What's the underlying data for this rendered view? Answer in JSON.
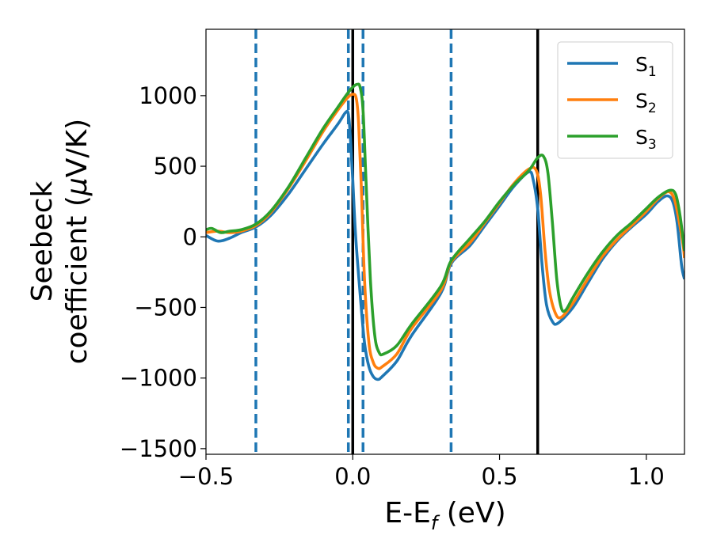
{
  "chart_data": {
    "type": "line",
    "xlabel": "E-E",
    "xlabel_sub": "f",
    "xlabel_unit": " (eV)",
    "ylabel_line1": "Seebeck",
    "ylabel_line2": "coefficient  (",
    "ylabel_mu": "μ",
    "ylabel_unit": "V/K)",
    "xlim": [
      -0.5,
      1.13
    ],
    "ylim": [
      -1540,
      1470
    ],
    "xticks": [
      {
        "value": -0.5,
        "label": "−0.5"
      },
      {
        "value": 0.0,
        "label": "0.0"
      },
      {
        "value": 0.5,
        "label": "0.5"
      },
      {
        "value": 1.0,
        "label": "1.0"
      }
    ],
    "yticks": [
      {
        "value": 1000,
        "label": "1000"
      },
      {
        "value": 500,
        "label": "500"
      },
      {
        "value": 0,
        "label": "0"
      },
      {
        "value": -500,
        "label": "−500"
      },
      {
        "value": -1000,
        "label": "−1000"
      },
      {
        "value": -1500,
        "label": "−1500"
      }
    ],
    "legend_position": "top-right",
    "grid": false,
    "vlines_solid": [
      0.0,
      0.63
    ],
    "vlines_dashed": [
      -0.33,
      -0.015,
      0.035,
      0.335
    ],
    "vline_dashed_color": "#1f77b4",
    "vline_solid_color": "#000000",
    "series": [
      {
        "name": "S",
        "sub": "1",
        "color": "#1f77b4",
        "points": [
          [
            -0.5,
            10
          ],
          [
            -0.46,
            -30
          ],
          [
            -0.42,
            -10
          ],
          [
            -0.38,
            30
          ],
          [
            -0.33,
            70
          ],
          [
            -0.28,
            150
          ],
          [
            -0.22,
            300
          ],
          [
            -0.16,
            480
          ],
          [
            -0.1,
            660
          ],
          [
            -0.05,
            800
          ],
          [
            -0.025,
            880
          ],
          [
            -0.015,
            870
          ],
          [
            -0.008,
            700
          ],
          [
            0.0,
            400
          ],
          [
            0.01,
            0
          ],
          [
            0.025,
            -400
          ],
          [
            0.04,
            -750
          ],
          [
            0.055,
            -920
          ],
          [
            0.07,
            -990
          ],
          [
            0.085,
            -1010
          ],
          [
            0.1,
            -990
          ],
          [
            0.15,
            -880
          ],
          [
            0.2,
            -700
          ],
          [
            0.3,
            -400
          ],
          [
            0.335,
            -190
          ],
          [
            0.4,
            -60
          ],
          [
            0.45,
            80
          ],
          [
            0.5,
            220
          ],
          [
            0.55,
            360
          ],
          [
            0.6,
            460
          ],
          [
            0.615,
            400
          ],
          [
            0.63,
            200
          ],
          [
            0.645,
            -200
          ],
          [
            0.66,
            -480
          ],
          [
            0.68,
            -600
          ],
          [
            0.7,
            -610
          ],
          [
            0.75,
            -500
          ],
          [
            0.8,
            -330
          ],
          [
            0.85,
            -160
          ],
          [
            0.9,
            -30
          ],
          [
            0.95,
            70
          ],
          [
            1.0,
            160
          ],
          [
            1.04,
            250
          ],
          [
            1.07,
            290
          ],
          [
            1.09,
            250
          ],
          [
            1.105,
            100
          ],
          [
            1.12,
            -200
          ],
          [
            1.13,
            -300
          ]
        ]
      },
      {
        "name": "S",
        "sub": "2",
        "color": "#ff7f0e",
        "points": [
          [
            -0.5,
            30
          ],
          [
            -0.46,
            40
          ],
          [
            -0.42,
            30
          ],
          [
            -0.38,
            40
          ],
          [
            -0.33,
            80
          ],
          [
            -0.28,
            170
          ],
          [
            -0.22,
            340
          ],
          [
            -0.16,
            540
          ],
          [
            -0.1,
            750
          ],
          [
            -0.05,
            900
          ],
          [
            -0.02,
            980
          ],
          [
            0.0,
            1010
          ],
          [
            0.012,
            980
          ],
          [
            0.02,
            800
          ],
          [
            0.03,
            300
          ],
          [
            0.04,
            -300
          ],
          [
            0.055,
            -750
          ],
          [
            0.07,
            -890
          ],
          [
            0.085,
            -930
          ],
          [
            0.1,
            -920
          ],
          [
            0.15,
            -830
          ],
          [
            0.2,
            -650
          ],
          [
            0.3,
            -380
          ],
          [
            0.335,
            -180
          ],
          [
            0.4,
            -40
          ],
          [
            0.45,
            100
          ],
          [
            0.5,
            240
          ],
          [
            0.55,
            380
          ],
          [
            0.6,
            480
          ],
          [
            0.625,
            470
          ],
          [
            0.64,
            300
          ],
          [
            0.655,
            -100
          ],
          [
            0.67,
            -380
          ],
          [
            0.69,
            -540
          ],
          [
            0.71,
            -570
          ],
          [
            0.75,
            -470
          ],
          [
            0.8,
            -300
          ],
          [
            0.85,
            -140
          ],
          [
            0.9,
            -20
          ],
          [
            0.95,
            80
          ],
          [
            1.0,
            180
          ],
          [
            1.04,
            270
          ],
          [
            1.075,
            320
          ],
          [
            1.095,
            270
          ],
          [
            1.11,
            130
          ],
          [
            1.125,
            -50
          ],
          [
            1.13,
            -150
          ]
        ]
      },
      {
        "name": "S",
        "sub": "3",
        "color": "#2ca02c",
        "points": [
          [
            -0.5,
            50
          ],
          [
            -0.48,
            60
          ],
          [
            -0.45,
            30
          ],
          [
            -0.42,
            40
          ],
          [
            -0.38,
            50
          ],
          [
            -0.33,
            90
          ],
          [
            -0.28,
            180
          ],
          [
            -0.22,
            350
          ],
          [
            -0.16,
            560
          ],
          [
            -0.1,
            770
          ],
          [
            -0.05,
            920
          ],
          [
            -0.02,
            1010
          ],
          [
            0.0,
            1060
          ],
          [
            0.015,
            1080
          ],
          [
            0.025,
            1060
          ],
          [
            0.035,
            900
          ],
          [
            0.045,
            400
          ],
          [
            0.06,
            -300
          ],
          [
            0.075,
            -700
          ],
          [
            0.09,
            -820
          ],
          [
            0.105,
            -830
          ],
          [
            0.15,
            -770
          ],
          [
            0.2,
            -620
          ],
          [
            0.3,
            -350
          ],
          [
            0.335,
            -170
          ],
          [
            0.4,
            -10
          ],
          [
            0.45,
            110
          ],
          [
            0.5,
            250
          ],
          [
            0.55,
            370
          ],
          [
            0.6,
            470
          ],
          [
            0.63,
            560
          ],
          [
            0.65,
            570
          ],
          [
            0.665,
            450
          ],
          [
            0.68,
            100
          ],
          [
            0.695,
            -300
          ],
          [
            0.71,
            -500
          ],
          [
            0.725,
            -520
          ],
          [
            0.75,
            -430
          ],
          [
            0.8,
            -260
          ],
          [
            0.85,
            -110
          ],
          [
            0.9,
            10
          ],
          [
            0.95,
            100
          ],
          [
            1.0,
            200
          ],
          [
            1.04,
            280
          ],
          [
            1.08,
            330
          ],
          [
            1.1,
            300
          ],
          [
            1.115,
            150
          ],
          [
            1.13,
            -100
          ]
        ]
      }
    ]
  }
}
